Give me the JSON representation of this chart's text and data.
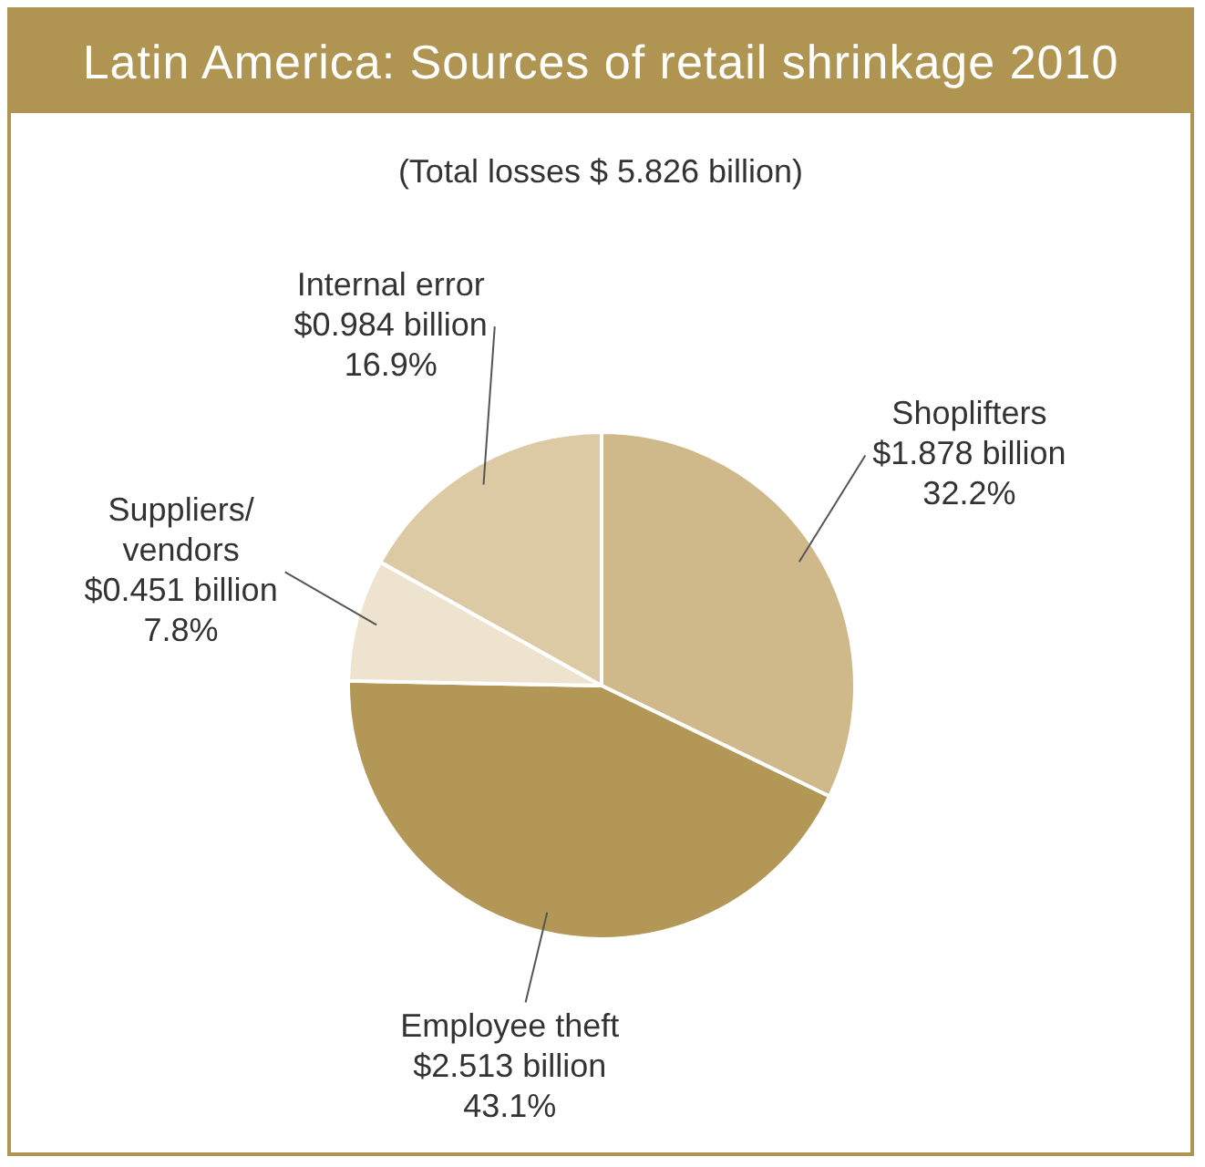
{
  "chart_data": {
    "type": "pie",
    "title": "Latin America: Sources of retail shrinkage 2010",
    "subtitle": "(Total losses $ 5.826 billion)",
    "categories": [
      "Shoplifters\n$1.878 billion",
      "Employee theft\n$2.513 billion",
      "Suppliers/\nvendors\n$0.451 billion",
      "Internal error\n$0.984 billion"
    ],
    "values": [
      32.2,
      43.1,
      7.8,
      16.9
    ],
    "colors": [
      "#cfb98a",
      "#b39757",
      "#ede3cf",
      "#dccaa5"
    ],
    "value_labels": [
      "32.2%",
      "43.1%",
      "7.8%",
      "16.9%"
    ],
    "legend": false
  }
}
